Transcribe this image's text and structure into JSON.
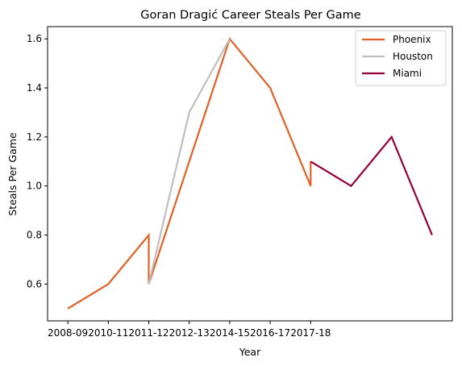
{
  "chart_data": {
    "type": "line",
    "title": "Goran Dragić Career Steals Per Game",
    "xlabel": "Year",
    "ylabel": "Steals Per Game",
    "x_tick_labels": [
      "2008-09",
      "2010-11",
      "2011-12",
      "2012-13",
      "2014-15",
      "2016-17",
      "2017-18"
    ],
    "x_tick_positions": [
      0,
      1,
      2,
      3,
      4,
      5,
      6
    ],
    "xlim": [
      -0.5,
      9.5
    ],
    "ylim": [
      0.45,
      1.65
    ],
    "y_ticks": [
      0.6,
      0.8,
      1.0,
      1.2,
      1.4,
      1.6
    ],
    "y_tick_labels": [
      "0.6",
      "0.8",
      "1.0",
      "1.2",
      "1.4",
      "1.6"
    ],
    "grid": false,
    "legend_position": "top-right",
    "series": [
      {
        "name": "Phoenix",
        "color": "#e06026",
        "x": [
          0,
          1,
          2,
          2,
          4,
          5,
          6,
          6
        ],
        "y": [
          0.5,
          0.6,
          0.8,
          0.6,
          1.6,
          1.4,
          1.0,
          1.1
        ]
      },
      {
        "name": "Houston",
        "color": "#bfbfbf",
        "x": [
          2,
          3,
          4
        ],
        "y": [
          0.6,
          1.3,
          1.6
        ]
      },
      {
        "name": "Miami",
        "color": "#93003a",
        "x": [
          6,
          7,
          8,
          9
        ],
        "y": [
          1.1,
          1.0,
          1.2,
          0.8
        ]
      }
    ]
  }
}
